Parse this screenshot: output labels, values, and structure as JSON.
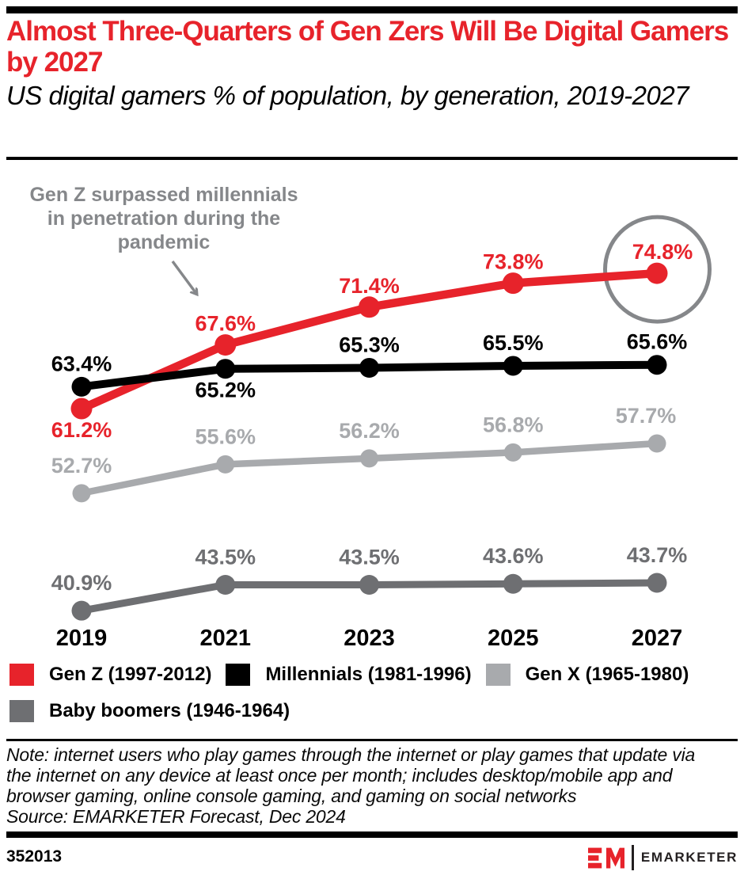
{
  "header": {
    "title": "Almost Three-Quarters of Gen Zers Will Be Digital Gamers by 2027",
    "subtitle": "US digital gamers % of population, by generation, 2019-2027"
  },
  "annotation": {
    "text": "Gen Z surpassed millennials in penetration during the pandemic",
    "lines": [
      "Gen Z surpassed millennials",
      "in penetration during the",
      "pandemic"
    ]
  },
  "chart_data": {
    "type": "line",
    "title": "US digital gamers % of population, by generation, 2019-2027",
    "categories": [
      "2019",
      "2021",
      "2023",
      "2025",
      "2027"
    ],
    "unit": "%",
    "xlabel": "",
    "ylabel": "US digital gamers % of population",
    "ylim": [
      38,
      80
    ],
    "grid": false,
    "legend_position": "bottom",
    "series": [
      {
        "name": "Gen Z (1997-2012)",
        "color": "#e7232b",
        "values": [
          61.2,
          67.6,
          71.4,
          73.8,
          74.8
        ],
        "label_pos": [
          "below",
          "above",
          "above",
          "above",
          "above"
        ],
        "dot_r": 13.5,
        "stroke_width": 10.5
      },
      {
        "name": "Millennials (1981-1996)",
        "color": "#000000",
        "values": [
          63.4,
          65.2,
          65.3,
          65.5,
          65.6
        ],
        "label_pos": [
          "above",
          "below",
          "above",
          "above",
          "above"
        ],
        "dot_r": 12.5,
        "stroke_width": 10
      },
      {
        "name": "Gen X (1965-1980)",
        "color": "#a8aaad",
        "values": [
          52.7,
          55.6,
          56.2,
          56.8,
          57.7
        ],
        "label_pos": [
          "above",
          "above",
          "above",
          "above",
          "above"
        ],
        "dot_r": 11.5,
        "stroke_width": 8.5
      },
      {
        "name": "Baby boomers (1946-1964)",
        "color": "#6e6f72",
        "values": [
          40.9,
          43.5,
          43.5,
          43.6,
          43.7
        ],
        "label_pos": [
          "above",
          "above",
          "above",
          "above",
          "above"
        ],
        "dot_r": 12.5,
        "stroke_width": 9
      }
    ],
    "highlight_circle": {
      "series_index": 0,
      "point_index": 4,
      "color": "#85878a"
    },
    "callout_arrow": {
      "color": "#85878a"
    }
  },
  "note": {
    "text": "Note: internet users who play games through the internet or play games that update via the internet on any device at least once per month; includes desktop/mobile app and browser gaming, online console gaming, and gaming on social networks",
    "source": "Source: EMARKETER Forecast, Dec 2024"
  },
  "footer": {
    "chart_id": "352013",
    "brand": "EMARKETER"
  },
  "colors": {
    "accent_red": "#e7232b",
    "annotation_gray": "#85878a",
    "gen_x_gray": "#a8aaad",
    "boomer_gray": "#6e6f72"
  }
}
